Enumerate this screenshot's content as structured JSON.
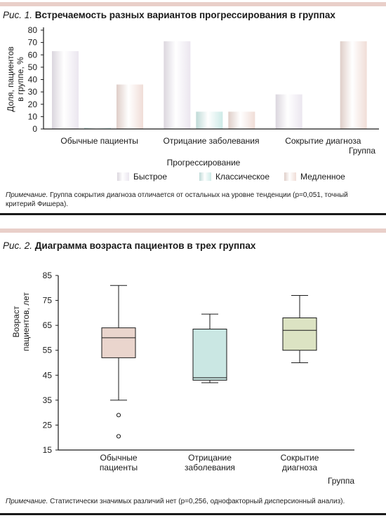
{
  "fig1": {
    "label": "Рис. 1.",
    "title": "Встречаемость разных вариантов прогрессирования в группах",
    "note_label": "Примечание.",
    "note": " Группа сокрытия диагноза отличается от остальных на уровне тенденции (p=0,051, точный критерий Фишера)."
  },
  "fig2": {
    "label": "Рис. 2.",
    "title": "Диаграмма возраста пациентов в трех группах",
    "note_label": "Примечание.",
    "note": " Статистически значимых различий нет (p=0,256, однофакторный дисперсионный анализ)."
  },
  "chart_data": [
    {
      "type": "bar",
      "title": "Встречаемость разных вариантов прогрессирования в группах",
      "ylabel": "Доля, пациентов в группе, %",
      "xlabel": "Группа",
      "legend_title": "Прогрессирование",
      "categories": [
        "Обычные пациенты",
        "Отрицание заболевания",
        "Сокрытие диагноза"
      ],
      "series": [
        {
          "name": "Быстрое",
          "values": [
            63,
            71,
            28
          ],
          "color": "#ebe6ef"
        },
        {
          "name": "Классическое",
          "values": [
            1,
            14,
            0
          ],
          "color": "#cdeae7"
        },
        {
          "name": "Медленное",
          "values": [
            36,
            14,
            71
          ],
          "color": "#f0ddd7"
        }
      ],
      "yticks": [
        0,
        10,
        20,
        30,
        40,
        50,
        60,
        70,
        80
      ],
      "ylim": [
        0,
        80
      ],
      "legend_position": "bottom",
      "grid": false
    },
    {
      "type": "box",
      "title": "Диаграмма возраста пациентов в трех группах",
      "ylabel": "Возраст пациентов, лет",
      "xlabel": "Группа",
      "categories": [
        "Обычные пациенты",
        "Отрицание заболевания",
        "Сокрытие диагноза"
      ],
      "boxes": [
        {
          "whisker_low": 35,
          "q1": 52,
          "median": 60,
          "q3": 64,
          "whisker_high": 81,
          "outliers": [
            29,
            20.5
          ],
          "color": "#ead5cd"
        },
        {
          "whisker_low": 42,
          "q1": 43,
          "median": 44,
          "q3": 63.5,
          "whisker_high": 69.5,
          "outliers": [],
          "color": "#cae7e3"
        },
        {
          "whisker_low": 50,
          "q1": 55,
          "median": 63,
          "q3": 68,
          "whisker_high": 77,
          "outliers": [],
          "color": "#dce3c3"
        }
      ],
      "yticks": [
        15,
        25,
        35,
        45,
        55,
        65,
        75,
        85
      ],
      "ylim": [
        15,
        85
      ],
      "grid": false
    }
  ]
}
